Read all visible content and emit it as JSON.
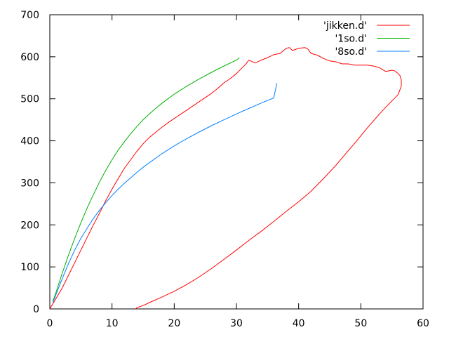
{
  "chart_data": {
    "type": "line",
    "title": "",
    "xlabel": "",
    "ylabel": "",
    "xlim": [
      0,
      60
    ],
    "ylim": [
      0,
      700
    ],
    "xticks": [
      0,
      10,
      20,
      30,
      40,
      50,
      60
    ],
    "yticks": [
      0,
      100,
      200,
      300,
      400,
      500,
      600,
      700
    ],
    "grid": false,
    "legend_position": "top-right",
    "series": [
      {
        "name": "'jikken.d'",
        "color": "#ff0000",
        "x": [
          0,
          1,
          2,
          3,
          4,
          5,
          6,
          7,
          8,
          9,
          10,
          11,
          12,
          13,
          14,
          15,
          16,
          17,
          18,
          19,
          20,
          22,
          24,
          26,
          27,
          28,
          29,
          30,
          31,
          31.5,
          32,
          33,
          34,
          35,
          36,
          37,
          38,
          38.5,
          39,
          40,
          41,
          41.5,
          42,
          43,
          44,
          45,
          46,
          47,
          48,
          49,
          50,
          51,
          52,
          53,
          54,
          55,
          55.5,
          56,
          56.3,
          56.5,
          56.5,
          56,
          55,
          54,
          53,
          52,
          51,
          50,
          49,
          48,
          46,
          44,
          42,
          40,
          38,
          36,
          34,
          32,
          30,
          28,
          26,
          24,
          22,
          20,
          18,
          16,
          15,
          14,
          13.8
        ],
        "y": [
          0,
          25,
          50,
          80,
          110,
          140,
          170,
          200,
          228,
          258,
          285,
          310,
          335,
          355,
          375,
          393,
          408,
          420,
          432,
          443,
          453,
          473,
          493,
          513,
          525,
          538,
          548,
          560,
          575,
          582,
          592,
          585,
          592,
          598,
          605,
          608,
          620,
          622,
          615,
          620,
          622,
          618,
          608,
          604,
          596,
          590,
          588,
          583,
          583,
          580,
          580,
          580,
          578,
          574,
          565,
          568,
          566,
          560,
          555,
          545,
          530,
          510,
          495,
          480,
          464,
          447,
          430,
          412,
          394,
          377,
          342,
          310,
          280,
          255,
          232,
          208,
          185,
          163,
          140,
          118,
          96,
          76,
          58,
          42,
          28,
          15,
          8,
          3,
          0
        ]
      },
      {
        "name": "'1so.d'",
        "color": "#00b000",
        "x": [
          0.5,
          1,
          2,
          3,
          4,
          5,
          6,
          7,
          8,
          9,
          10,
          11,
          12,
          13,
          14,
          15,
          16,
          17,
          18,
          19,
          20,
          22,
          24,
          26,
          28,
          30,
          30.5
        ],
        "y": [
          18,
          40,
          85,
          128,
          168,
          205,
          240,
          272,
          302,
          330,
          355,
          378,
          398,
          417,
          434,
          450,
          464,
          477,
          489,
          500,
          511,
          530,
          547,
          563,
          578,
          592,
          598
        ]
      },
      {
        "name": "'8so.d'",
        "color": "#0080ff",
        "x": [
          0.5,
          1,
          2,
          3,
          4,
          5,
          6,
          7,
          8,
          9,
          10,
          11,
          12,
          13,
          14,
          15,
          16,
          18,
          20,
          22,
          24,
          26,
          28,
          30,
          32,
          34,
          36,
          36.5
        ],
        "y": [
          15,
          35,
          72,
          108,
          140,
          168,
          192,
          215,
          235,
          253,
          270,
          285,
          299,
          312,
          325,
          337,
          348,
          369,
          388,
          405,
          421,
          436,
          450,
          464,
          477,
          490,
          502,
          537
        ]
      }
    ]
  }
}
